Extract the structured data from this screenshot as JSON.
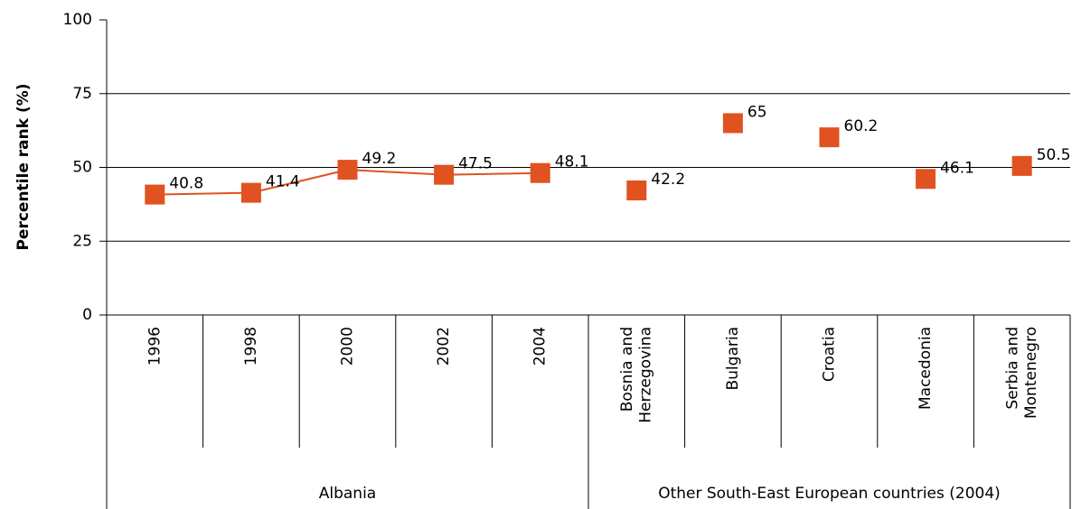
{
  "chart_data": {
    "type": "line",
    "y_label": "Percentile rank (%)",
    "ylim": [
      0,
      100
    ],
    "yticks": [
      0,
      25,
      50,
      75,
      100
    ],
    "grid": true,
    "color": "#e0521f",
    "groups": [
      {
        "name": "Albania",
        "connected": true,
        "categories": [
          "1996",
          "1998",
          "2000",
          "2002",
          "2004"
        ],
        "values": [
          40.8,
          41.4,
          49.2,
          47.5,
          48.1
        ]
      },
      {
        "name": "Other South-East European countries (2004)",
        "connected": false,
        "categories": [
          "Bosnia and Herzegovina",
          "Bulgaria",
          "Croatia",
          "Macedonia",
          "Serbia and Montenegro"
        ],
        "values": [
          42.2,
          65,
          60.2,
          46.1,
          50.5
        ]
      }
    ]
  }
}
